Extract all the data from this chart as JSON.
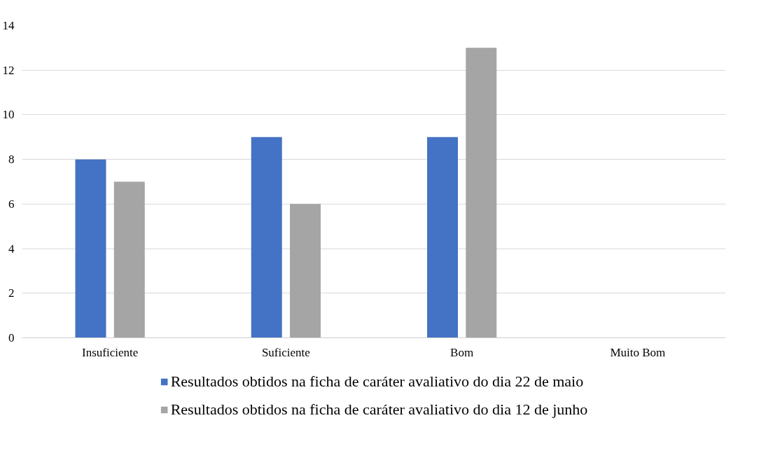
{
  "chart_data": {
    "type": "bar",
    "categories": [
      "Insuficiente",
      "Suficiente",
      "Bom",
      "Muito Bom"
    ],
    "series": [
      {
        "name": "Resultados obtidos na ficha de caráter avaliativo do dia 22 de maio",
        "color": "#4472c4",
        "values": [
          8,
          9,
          9,
          0
        ]
      },
      {
        "name": "Resultados obtidos na ficha de caráter avaliativo do dia 12 de junho",
        "color": "#a5a5a5",
        "values": [
          7,
          6,
          13,
          0
        ]
      }
    ],
    "ylim": [
      0,
      14
    ],
    "yticks": [
      0,
      2,
      4,
      6,
      8,
      10,
      12,
      14
    ],
    "grid": "y",
    "legend": "bottom"
  }
}
